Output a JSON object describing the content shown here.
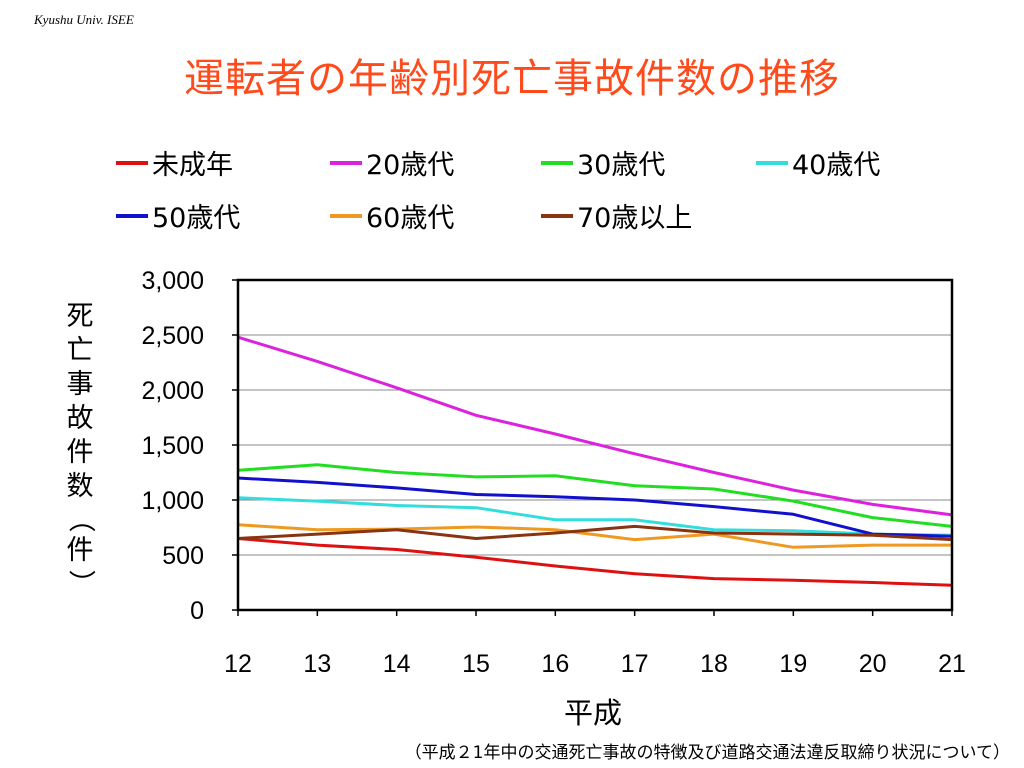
{
  "header": {
    "corner_text": "Kyushu Univ. ISEE"
  },
  "chart_data": {
    "type": "line",
    "title": "運転者の年齢別死亡事故件数の推移",
    "xlabel": "平成",
    "ylabel": "死亡事故件数（件）",
    "source": "（平成２1年中の交通死亡事故の特徴及び道路交通法違反取締り状況について）",
    "x": [
      "12",
      "13",
      "14",
      "15",
      "16",
      "17",
      "18",
      "19",
      "20",
      "21"
    ],
    "ylim": [
      0,
      3000
    ],
    "yticks": [
      "3,000",
      "2,500",
      "2,000",
      "1,500",
      "1,000",
      "500",
      "0"
    ],
    "grid": true,
    "legend_position": "top",
    "series": [
      {
        "name": "未成年",
        "color": "#dd1111",
        "values": [
          650,
          590,
          550,
          480,
          400,
          330,
          285,
          270,
          250,
          225
        ]
      },
      {
        "name": "20歳代",
        "color": "#dd22dd",
        "values": [
          2480,
          2260,
          2020,
          1770,
          1600,
          1420,
          1250,
          1090,
          960,
          865
        ]
      },
      {
        "name": "30歳代",
        "color": "#22dd22",
        "values": [
          1270,
          1320,
          1250,
          1210,
          1220,
          1130,
          1100,
          990,
          840,
          760
        ]
      },
      {
        "name": "40歳代",
        "color": "#33dddd",
        "values": [
          1020,
          990,
          950,
          930,
          820,
          820,
          730,
          720,
          690,
          680
        ]
      },
      {
        "name": "50歳代",
        "color": "#1111cc",
        "values": [
          1200,
          1160,
          1110,
          1050,
          1030,
          1000,
          940,
          870,
          690,
          670
        ]
      },
      {
        "name": "60歳代",
        "color": "#ee9922",
        "values": [
          775,
          730,
          735,
          755,
          730,
          640,
          690,
          570,
          590,
          590
        ]
      },
      {
        "name": "70歳以上",
        "color": "#883311",
        "values": [
          650,
          690,
          730,
          650,
          700,
          760,
          700,
          690,
          680,
          640
        ]
      }
    ]
  }
}
